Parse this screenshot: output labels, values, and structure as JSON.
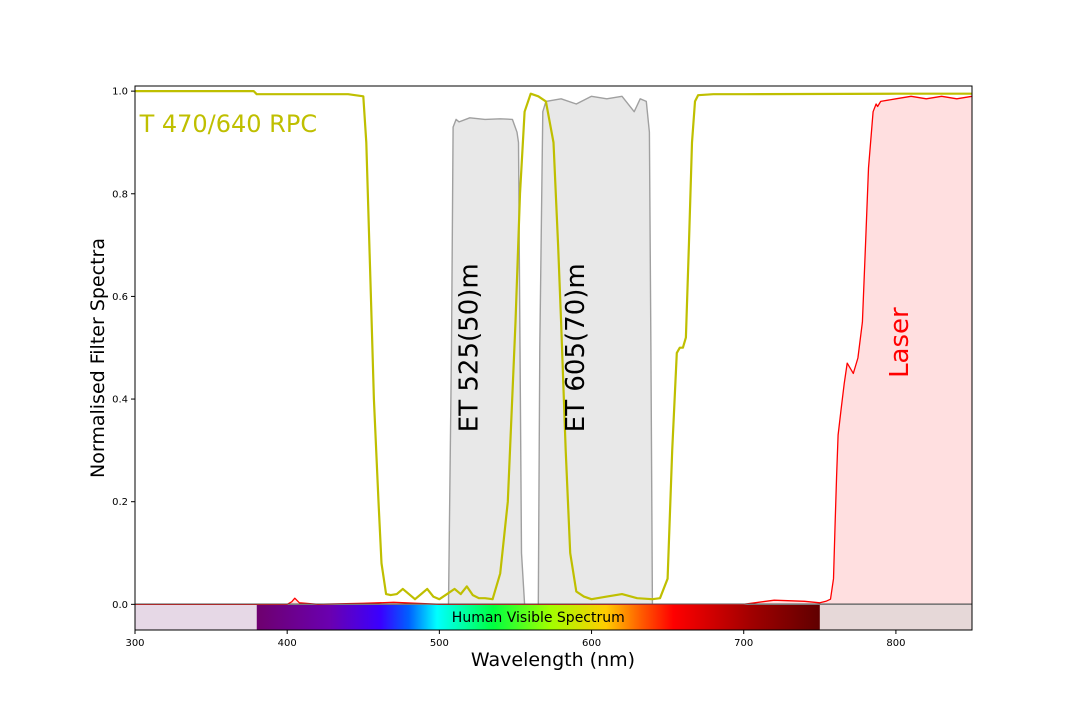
{
  "chart_data": {
    "type": "line",
    "xlabel": "Wavelength (nm)",
    "ylabel": "Normalised Filter Spectra",
    "xlim": [
      300,
      850
    ],
    "ylim": [
      -0.05,
      1.01
    ],
    "x_ticks": [
      300,
      400,
      500,
      600,
      700,
      800
    ],
    "y_ticks": [
      0.0,
      0.2,
      0.4,
      0.6,
      0.8,
      1.0
    ],
    "x_tick_labels": [
      "300",
      "400",
      "500",
      "600",
      "700",
      "800"
    ],
    "y_tick_labels": [
      "0.0",
      "0.2",
      "0.4",
      "0.6",
      "0.8",
      "1.0"
    ],
    "grid": false,
    "visible_spectrum": {
      "label": "Human Visible Spectrum",
      "range": [
        380,
        750
      ]
    },
    "annotations": [
      {
        "text": "T 470/640 RPC",
        "x": 303,
        "y": 0.92,
        "color": "#bfbf00",
        "rotation": 0,
        "size": "large"
      },
      {
        "text": "ET 525(50)m",
        "x": 525,
        "y": 0.5,
        "color": "#000000",
        "rotation": 90,
        "size": "xlarge"
      },
      {
        "text": "ET 605(70)m",
        "x": 595,
        "y": 0.5,
        "color": "#000000",
        "rotation": 90,
        "size": "xlarge"
      },
      {
        "text": "Laser",
        "x": 808,
        "y": 0.51,
        "color": "#ff0000",
        "rotation": 90,
        "size": "xlarge"
      }
    ],
    "series": [
      {
        "id": "et525",
        "color": "#a0a0a0",
        "fill": "#e8e8e8",
        "x": [
          300,
          506,
          508,
          509,
          511,
          513,
          520,
          530,
          540,
          548,
          551,
          552,
          553,
          554,
          556,
          850
        ],
        "y": [
          0,
          0,
          0.5,
          0.93,
          0.945,
          0.94,
          0.948,
          0.945,
          0.946,
          0.945,
          0.92,
          0.9,
          0.5,
          0.1,
          0,
          0
        ]
      },
      {
        "id": "et605",
        "color": "#a0a0a0",
        "fill": "#e8e8e8",
        "x": [
          300,
          565,
          566,
          568,
          570,
          580,
          590,
          600,
          610,
          620,
          628,
          632,
          636,
          638,
          639,
          640,
          850
        ],
        "y": [
          0,
          0,
          0.5,
          0.96,
          0.98,
          0.985,
          0.975,
          0.99,
          0.985,
          0.99,
          0.96,
          0.985,
          0.98,
          0.92,
          0.5,
          0,
          0
        ]
      },
      {
        "id": "t470-640rpc",
        "color": "#bfbf00",
        "x": [
          300,
          378,
          380,
          400,
          440,
          450,
          452,
          455,
          457,
          460,
          462,
          465,
          468,
          472,
          476,
          480,
          484,
          488,
          492,
          496,
          500,
          505,
          510,
          514,
          518,
          522,
          526,
          530,
          535,
          540,
          545,
          550,
          553,
          556,
          560,
          565,
          570,
          575,
          578,
          580,
          583,
          586,
          590,
          595,
          600,
          610,
          620,
          630,
          640,
          645,
          650,
          653,
          656,
          658,
          660,
          662,
          664,
          666,
          668,
          670,
          680,
          700,
          800,
          850
        ],
        "y": [
          1.0,
          1.0,
          0.994,
          0.994,
          0.994,
          0.99,
          0.9,
          0.6,
          0.4,
          0.2,
          0.08,
          0.02,
          0.018,
          0.02,
          0.03,
          0.02,
          0.01,
          0.02,
          0.03,
          0.015,
          0.01,
          0.02,
          0.03,
          0.02,
          0.035,
          0.018,
          0.012,
          0.012,
          0.01,
          0.06,
          0.2,
          0.55,
          0.8,
          0.96,
          0.995,
          0.99,
          0.98,
          0.9,
          0.7,
          0.55,
          0.3,
          0.1,
          0.025,
          0.015,
          0.01,
          0.015,
          0.02,
          0.012,
          0.01,
          0.012,
          0.05,
          0.3,
          0.49,
          0.5,
          0.5,
          0.52,
          0.7,
          0.9,
          0.98,
          0.992,
          0.994,
          0.994,
          0.995,
          0.995
        ]
      },
      {
        "id": "laser",
        "color": "#ff0000",
        "fill": "#ffdfe0",
        "x": [
          300,
          400,
          403,
          405,
          408,
          420,
          450,
          470,
          500,
          600,
          700,
          720,
          740,
          750,
          754,
          757,
          759,
          760,
          761,
          762,
          764,
          766,
          768,
          770,
          772,
          775,
          778,
          780,
          782,
          785,
          787,
          788,
          790,
          800,
          810,
          820,
          830,
          840,
          850
        ],
        "y": [
          0,
          0,
          0.005,
          0.012,
          0.003,
          0,
          0.002,
          0.004,
          0,
          0,
          0,
          0.008,
          0.006,
          0.003,
          0.006,
          0.01,
          0.05,
          0.15,
          0.25,
          0.33,
          0.38,
          0.43,
          0.47,
          0.46,
          0.45,
          0.48,
          0.55,
          0.7,
          0.85,
          0.96,
          0.975,
          0.97,
          0.98,
          0.985,
          0.99,
          0.985,
          0.99,
          0.985,
          0.99
        ]
      }
    ]
  }
}
